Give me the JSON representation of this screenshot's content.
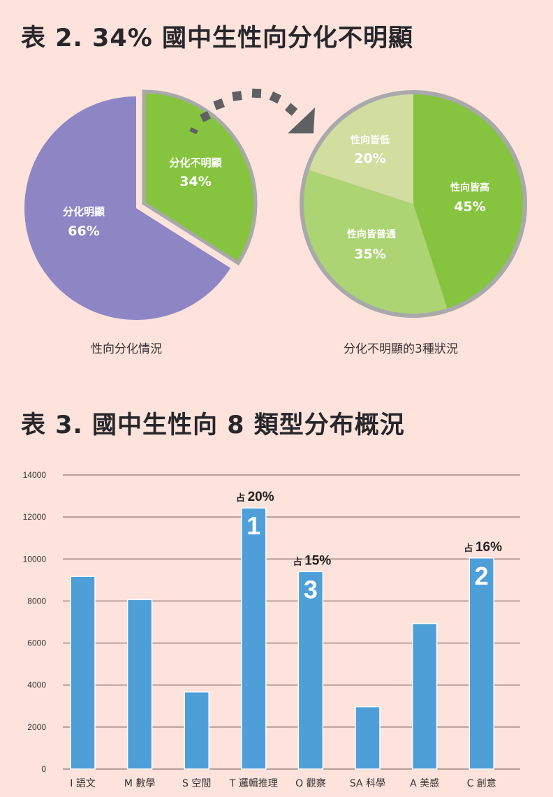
{
  "colors": {
    "background": "#fde3dc",
    "purple": "#8e86c4",
    "green_dark": "#86c440",
    "green_mid": "#add472",
    "green_pale": "#d2dda0",
    "pie_border": "#a9a9ab",
    "arrow": "#5f6062",
    "bar": "#4e9fd8",
    "grid": "#a08782"
  },
  "table2": {
    "title": "表 2. 34% 國中生性向分化不明顯",
    "left_caption": "性向分化情況",
    "right_caption": "分化不明顯的3種狀況"
  },
  "table3": {
    "title": "表 3. 國中生性向 8 類型分布概況"
  },
  "chart_data": [
    {
      "type": "pie",
      "title": "性向分化情況",
      "labels": [
        "分化明顯",
        "分化不明顯"
      ],
      "values": [
        66,
        34
      ],
      "value_labels": [
        "66%",
        "34%"
      ],
      "exploded": [
        "分化不明顯"
      ]
    },
    {
      "type": "pie",
      "title": "分化不明顯的3種狀況",
      "labels": [
        "性向皆高",
        "性向皆普通",
        "性向皆低"
      ],
      "values": [
        45,
        35,
        20
      ],
      "value_labels": [
        "45%",
        "35%",
        "20%"
      ]
    },
    {
      "type": "bar",
      "title": "表 3. 國中生性向 8 類型分布概況",
      "categories": [
        "I 語文",
        "M 數學",
        "S 空間",
        "T 邏輯推理",
        "O 觀察",
        "SA 科學",
        "A 美感",
        "C 創意"
      ],
      "values": [
        9170,
        8070,
        3670,
        12430,
        9400,
        2970,
        6930,
        10050
      ],
      "ylim": [
        0,
        14000
      ],
      "yticks": [
        0,
        2000,
        4000,
        6000,
        8000,
        10000,
        12000,
        14000
      ],
      "grid": true,
      "annotations": [
        {
          "category": "T 邏輯推理",
          "rank": "1",
          "prefix": "占",
          "share": "20%"
        },
        {
          "category": "C 創意",
          "rank": "2",
          "prefix": "占",
          "share": "16%"
        },
        {
          "category": "O 觀察",
          "rank": "3",
          "prefix": "占",
          "share": "15%"
        }
      ]
    }
  ]
}
